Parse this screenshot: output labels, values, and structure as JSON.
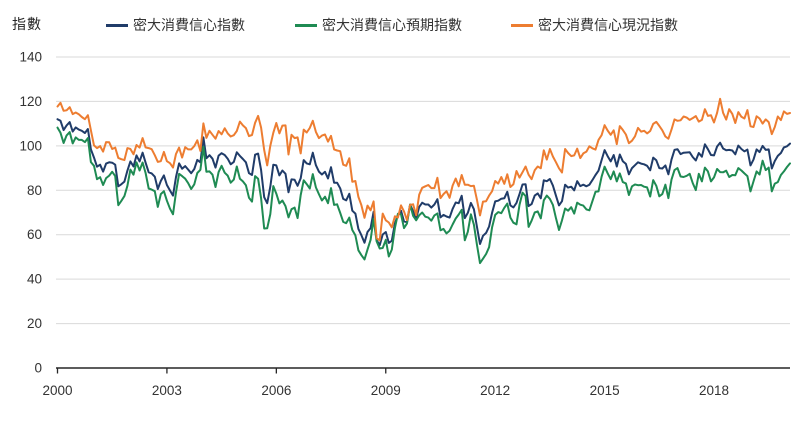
{
  "chart_data": {
    "type": "line",
    "title": "",
    "ylabel": "指數",
    "xlabel": "",
    "frequency": "monthly",
    "x_start": "2000-01",
    "x_end": "2020-02",
    "ylim": [
      0,
      140
    ],
    "y_ticks": [
      0,
      20,
      40,
      60,
      80,
      100,
      120,
      140
    ],
    "x_tick_labels": [
      "2000",
      "2003",
      "2006",
      "2009",
      "2012",
      "2015",
      "2018"
    ],
    "x_tick_years": [
      2000,
      2003,
      2006,
      2009,
      2012,
      2015,
      2018
    ],
    "x_tick_marks_years": [
      2000,
      2003,
      2006,
      2009
    ],
    "grid": "horizontal",
    "legend_position": "top",
    "colors": {
      "grid": "#d9d9d9",
      "axis": "#262626",
      "tick_text": "#333333"
    },
    "series": [
      {
        "name": "密大消費信心指數",
        "color": "#203c69",
        "values": [
          112.0,
          111.3,
          107.1,
          109.2,
          110.7,
          106.4,
          108.3,
          107.3,
          106.8,
          105.8,
          107.6,
          98.4,
          94.7,
          90.6,
          91.5,
          88.4,
          92.0,
          92.6,
          92.4,
          91.5,
          81.8,
          82.7,
          83.9,
          88.8,
          93.0,
          90.7,
          95.7,
          93.0,
          96.9,
          92.4,
          88.1,
          87.6,
          86.1,
          80.6,
          84.2,
          86.7,
          82.4,
          79.9,
          77.6,
          86.0,
          92.1,
          89.7,
          90.9,
          89.3,
          87.7,
          89.6,
          93.7,
          92.6,
          103.8,
          94.4,
          95.8,
          94.2,
          90.2,
          95.6,
          96.7,
          95.9,
          94.2,
          91.7,
          92.8,
          97.1,
          95.5,
          94.1,
          92.6,
          87.7,
          86.9,
          96.0,
          96.5,
          89.1,
          76.9,
          74.2,
          81.6,
          91.5,
          91.2,
          86.7,
          88.9,
          87.4,
          79.1,
          84.9,
          84.7,
          82.0,
          85.4,
          93.6,
          92.1,
          91.7,
          96.9,
          91.3,
          88.4,
          87.1,
          88.3,
          85.3,
          90.4,
          83.4,
          83.4,
          80.9,
          76.1,
          75.5,
          78.4,
          70.8,
          69.5,
          62.6,
          59.8,
          56.4,
          61.2,
          63.0,
          70.3,
          57.6,
          55.3,
          60.1,
          61.2,
          56.3,
          57.3,
          65.1,
          68.7,
          70.8,
          66.0,
          65.7,
          73.5,
          70.6,
          67.4,
          72.5,
          74.4,
          73.6,
          73.6,
          72.2,
          73.6,
          76.0,
          67.8,
          68.9,
          68.2,
          67.7,
          71.6,
          74.5,
          74.2,
          77.5,
          67.5,
          69.8,
          74.3,
          71.5,
          63.7,
          55.8,
          59.5,
          60.8,
          63.7,
          69.9,
          75.0,
          75.3,
          76.2,
          76.4,
          79.3,
          73.2,
          72.3,
          74.3,
          78.3,
          82.6,
          82.7,
          72.9,
          73.8,
          77.6,
          78.6,
          76.4,
          84.5,
          84.1,
          85.1,
          82.1,
          77.5,
          73.2,
          75.1,
          82.5,
          81.2,
          81.6,
          80.0,
          84.1,
          81.9,
          82.5,
          81.8,
          82.5,
          84.6,
          86.9,
          88.8,
          93.6,
          98.1,
          95.4,
          93.0,
          95.9,
          90.7,
          96.1,
          93.1,
          91.9,
          87.2,
          90.0,
          91.3,
          92.6,
          92.0,
          91.7,
          91.0,
          89.0,
          94.7,
          93.5,
          90.0,
          89.8,
          91.2,
          87.2,
          93.8,
          98.2,
          98.5,
          96.3,
          96.9,
          97.0,
          97.1,
          95.0,
          93.4,
          96.8,
          95.1,
          100.7,
          98.5,
          95.9,
          95.7,
          99.7,
          101.4,
          98.8,
          98.0,
          98.2,
          97.9,
          96.2,
          100.1,
          98.6,
          97.5,
          98.3,
          91.2,
          93.8,
          98.4,
          97.2,
          100.0,
          98.2,
          98.4,
          89.8,
          93.2,
          95.5,
          96.8,
          99.3,
          99.8,
          101.0
        ]
      },
      {
        "name": "密大消費信心預期指數",
        "color": "#1f8b53",
        "values": [
          108.2,
          105.9,
          101.3,
          104.7,
          106.2,
          101.1,
          103.8,
          102.7,
          102.7,
          101.7,
          103.5,
          92.7,
          91.0,
          85.0,
          85.9,
          82.4,
          85.5,
          86.6,
          88.3,
          86.4,
          73.3,
          75.2,
          77.4,
          82.0,
          89.3,
          87.0,
          92.6,
          88.9,
          92.5,
          87.8,
          80.8,
          80.3,
          79.6,
          72.5,
          78.3,
          79.6,
          75.3,
          71.7,
          69.2,
          79.1,
          87.4,
          86.4,
          85.2,
          83.2,
          80.6,
          82.7,
          87.8,
          89.2,
          99.6,
          88.3,
          88.5,
          87.0,
          81.5,
          88.2,
          91.0,
          87.9,
          86.6,
          83.4,
          84.8,
          90.7,
          85.2,
          84.0,
          82.3,
          76.6,
          74.9,
          86.4,
          85.2,
          76.4,
          62.8,
          62.9,
          69.3,
          81.9,
          78.5,
          74.1,
          75.4,
          72.9,
          67.8,
          71.5,
          72.2,
          67.5,
          77.9,
          84.5,
          82.8,
          80.8,
          87.3,
          81.3,
          78.3,
          75.4,
          77.1,
          74.2,
          81.0,
          73.4,
          73.7,
          69.8,
          65.8,
          65.2,
          67.7,
          62.1,
          59.7,
          53.0,
          50.8,
          48.9,
          53.3,
          57.7,
          67.2,
          57.1,
          53.8,
          54.0,
          57.7,
          50.2,
          53.3,
          63.0,
          69.4,
          69.2,
          63.0,
          65.1,
          73.6,
          68.5,
          66.5,
          68.8,
          70.0,
          68.1,
          67.7,
          66.3,
          68.7,
          69.6,
          62.0,
          62.6,
          60.6,
          61.8,
          64.6,
          67.3,
          69.1,
          71.2,
          57.5,
          61.3,
          69.2,
          64.5,
          55.6,
          47.2,
          49.2,
          51.3,
          54.4,
          63.4,
          68.9,
          70.2,
          69.7,
          72.1,
          74.0,
          67.7,
          65.4,
          64.7,
          73.4,
          78.9,
          77.4,
          63.5,
          66.3,
          70.0,
          70.5,
          67.4,
          75.5,
          77.6,
          76.1,
          73.4,
          67.4,
          62.1,
          66.5,
          71.8,
          70.8,
          72.4,
          69.5,
          74.4,
          73.5,
          73.1,
          71.4,
          71.0,
          75.1,
          79.3,
          79.5,
          86.1,
          90.6,
          87.7,
          85.0,
          88.5,
          84.0,
          87.6,
          83.7,
          83.1,
          77.9,
          81.8,
          82.6,
          82.3,
          82.4,
          81.6,
          81.3,
          77.2,
          84.6,
          82.0,
          77.3,
          78.3,
          82.5,
          76.5,
          84.8,
          89.1,
          90.0,
          86.2,
          86.0,
          86.5,
          87.4,
          83.3,
          80.1,
          87.4,
          84.0,
          90.2,
          88.5,
          84.0,
          85.8,
          89.6,
          88.2,
          88.1,
          88.8,
          86.0,
          86.9,
          86.8,
          90.0,
          88.9,
          87.6,
          86.4,
          79.5,
          84.0,
          88.5,
          87.1,
          93.3,
          89.1,
          90.2,
          79.5,
          83.0,
          83.7,
          86.9,
          88.5,
          90.5,
          92.1
        ]
      },
      {
        "name": "密大消費信心現況指數",
        "color": "#ed7d31",
        "values": [
          117.7,
          119.4,
          115.8,
          116.0,
          117.4,
          114.3,
          115.0,
          114.2,
          113.0,
          112.0,
          113.8,
          107.0,
          100.2,
          99.0,
          99.9,
          97.4,
          101.7,
          101.6,
          98.6,
          99.2,
          94.6,
          94.0,
          93.6,
          99.0,
          98.6,
          96.2,
          100.4,
          99.2,
          103.5,
          99.3,
          99.0,
          98.5,
          95.8,
          92.8,
          93.1,
          97.3,
          93.1,
          92.2,
          90.2,
          96.4,
          99.2,
          94.7,
          99.4,
          98.4,
          98.4,
          99.9,
          102.5,
          97.7,
          110.1,
          103.6,
          106.8,
          105.0,
          103.2,
          106.7,
          105.2,
          107.9,
          105.6,
          104.2,
          104.8,
          106.7,
          110.9,
          109.2,
          108.0,
          104.4,
          104.9,
          110.4,
          113.5,
          108.2,
          98.1,
          91.2,
          100.0,
          105.9,
          110.3,
          105.6,
          109.1,
          109.2,
          96.1,
          105.0,
          103.5,
          103.8,
          96.6,
          107.3,
          106.0,
          108.1,
          111.3,
          106.3,
          103.5,
          104.6,
          105.1,
          101.9,
          104.5,
          98.4,
          97.9,
          97.6,
          91.5,
          91.0,
          94.4,
          83.8,
          84.2,
          77.0,
          73.3,
          67.6,
          73.1,
          71.0,
          75.0,
          58.4,
          57.5,
          69.5,
          66.5,
          65.5,
          63.3,
          68.3,
          67.7,
          73.2,
          70.5,
          66.6,
          73.4,
          73.7,
          68.8,
          78.0,
          81.1,
          81.8,
          82.4,
          81.0,
          81.0,
          85.6,
          76.5,
          78.3,
          79.6,
          76.6,
          82.1,
          85.3,
          81.8,
          86.9,
          82.5,
          82.5,
          81.9,
          82.0,
          75.8,
          68.7,
          74.9,
          75.1,
          77.6,
          79.6,
          84.2,
          83.0,
          86.0,
          82.9,
          87.2,
          81.5,
          82.7,
          88.7,
          85.7,
          88.1,
          90.7,
          87.0,
          85.0,
          89.0,
          90.7,
          89.9,
          98.0,
          93.8,
          98.6,
          95.2,
          92.6,
          89.9,
          88.0,
          98.6,
          96.8,
          95.4,
          95.7,
          98.7,
          94.5,
          96.6,
          97.4,
          99.8,
          98.9,
          98.3,
          102.7,
          104.8,
          109.3,
          106.9,
          105.0,
          107.0,
          100.8,
          108.9,
          107.2,
          105.1,
          101.2,
          102.3,
          104.3,
          108.1,
          106.4,
          106.8,
          105.6,
          106.7,
          109.9,
          110.8,
          109.0,
          107.0,
          104.2,
          103.2,
          107.3,
          111.9,
          111.3,
          111.5,
          113.2,
          112.7,
          111.7,
          112.5,
          113.4,
          110.9,
          111.7,
          116.5,
          113.5,
          113.8,
          110.5,
          114.9,
          121.2,
          114.9,
          111.8,
          116.5,
          114.4,
          110.3,
          115.2,
          113.1,
          112.3,
          116.1,
          108.8,
          108.5,
          113.3,
          112.3,
          110.0,
          111.9,
          110.7,
          105.3,
          108.5,
          113.2,
          111.6,
          115.5,
          114.4,
          114.8
        ]
      }
    ]
  }
}
